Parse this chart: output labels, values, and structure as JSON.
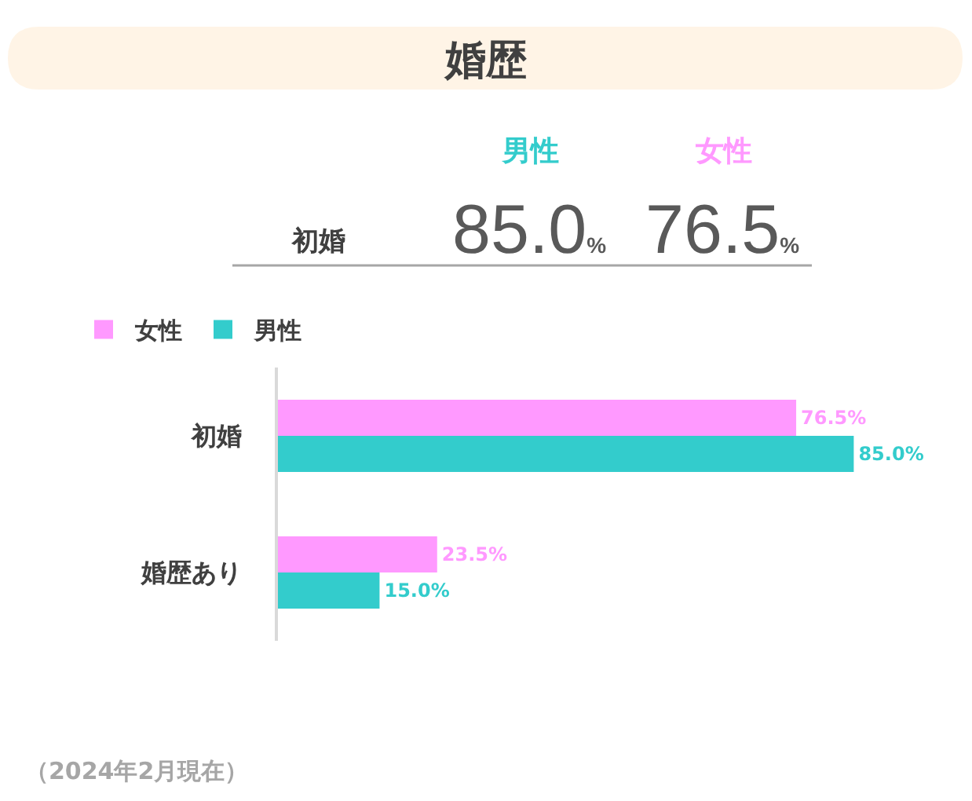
{
  "chart_data": [
    {
      "type": "other",
      "title": "婚歴",
      "categories": [
        "男性",
        "女性"
      ],
      "y_categories": [
        "初婚"
      ],
      "cell_labels": [
        [
          "85.0%",
          "76.5%"
        ]
      ],
      "colors": [
        "#33cccc",
        "#ff99ff"
      ]
    },
    {
      "type": "bar",
      "orientation": "horizontal",
      "categories": [
        "初婚",
        "婚歴あり"
      ],
      "series": [
        {
          "name": "女性",
          "color": "#ff99ff",
          "values": [
            76.5,
            23.5
          ],
          "value_labels": [
            "76.5%",
            "23.5%"
          ]
        },
        {
          "name": "男性",
          "color": "#33cccc",
          "values": [
            85.0,
            15.0
          ],
          "value_labels": [
            "85.0%",
            "15.0%"
          ]
        }
      ],
      "legend": "top left",
      "tick_labels": "y",
      "annotations": [
        "（2024年2月現在）"
      ]
    }
  ]
}
